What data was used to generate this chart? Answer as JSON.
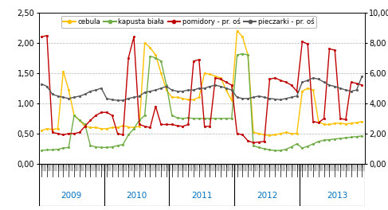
{
  "legend_labels": [
    "cebula",
    "kapusta biała",
    "pomidory - pr. oś",
    "pieczarki - pr. oś"
  ],
  "legend_colors": [
    "#FFC000",
    "#70AD47",
    "#C00000",
    "#595959"
  ],
  "left_ylim": [
    0.0,
    2.5
  ],
  "right_ylim": [
    0.0,
    10.0
  ],
  "left_yticks": [
    0.0,
    0.5,
    1.0,
    1.5,
    2.0,
    2.5
  ],
  "right_yticks": [
    0.0,
    2.0,
    4.0,
    6.0,
    8.0,
    10.0
  ],
  "grid_color": "#AAAAAA",
  "bg_color": "#FFFFFF",
  "year_labels": [
    "2009",
    "2010",
    "2011",
    "2012",
    "2013"
  ],
  "cebula": [
    0.55,
    0.58,
    0.57,
    0.58,
    1.53,
    1.22,
    0.8,
    0.72,
    0.62,
    0.6,
    0.6,
    0.58,
    0.58,
    0.6,
    0.6,
    0.63,
    0.61,
    0.6,
    0.62,
    2.0,
    1.92,
    1.8,
    1.5,
    1.22,
    1.1,
    1.1,
    1.08,
    1.06,
    1.06,
    1.1,
    1.5,
    1.48,
    1.45,
    1.42,
    1.22,
    1.05,
    2.2,
    2.1,
    1.8,
    0.52,
    0.5,
    0.48,
    0.47,
    0.48,
    0.5,
    0.52,
    0.5,
    0.5,
    1.2,
    1.25,
    1.22,
    0.7,
    0.65,
    0.65,
    0.67,
    0.67,
    0.66,
    0.67,
    0.68,
    0.7
  ],
  "kapusta": [
    0.22,
    0.23,
    0.23,
    0.24,
    0.26,
    0.27,
    0.8,
    0.72,
    0.65,
    0.3,
    0.28,
    0.27,
    0.27,
    0.28,
    0.3,
    0.32,
    0.48,
    0.58,
    0.72,
    0.8,
    1.78,
    1.75,
    1.7,
    1.3,
    0.8,
    0.76,
    0.75,
    0.76,
    0.75,
    0.75,
    0.75,
    0.75,
    0.75,
    0.75,
    0.75,
    0.75,
    1.8,
    1.82,
    1.8,
    0.3,
    0.27,
    0.25,
    0.23,
    0.22,
    0.22,
    0.24,
    0.28,
    0.33,
    0.26,
    0.29,
    0.33,
    0.37,
    0.39,
    0.4,
    0.41,
    0.42,
    0.43,
    0.44,
    0.45,
    0.46
  ],
  "pomidory": [
    2.1,
    2.12,
    0.52,
    0.5,
    0.48,
    0.5,
    0.5,
    0.52,
    0.62,
    0.72,
    0.8,
    0.85,
    0.85,
    0.8,
    0.5,
    0.48,
    1.75,
    2.1,
    0.65,
    0.62,
    0.6,
    0.95,
    0.65,
    0.65,
    0.65,
    0.63,
    0.62,
    0.65,
    1.7,
    1.72,
    0.62,
    0.62,
    1.42,
    1.4,
    1.35,
    1.3,
    0.5,
    0.48,
    0.38,
    0.35,
    0.36,
    0.37,
    1.4,
    1.42,
    1.38,
    1.35,
    1.3,
    1.2,
    2.02,
    1.98,
    0.7,
    0.68,
    0.75,
    1.9,
    1.88,
    0.75,
    0.73,
    1.35,
    1.33,
    1.3
  ],
  "pieczarki": [
    1.32,
    1.28,
    1.15,
    1.12,
    1.1,
    1.08,
    1.1,
    1.12,
    1.15,
    1.2,
    1.22,
    1.25,
    1.08,
    1.06,
    1.05,
    1.05,
    1.08,
    1.1,
    1.12,
    1.18,
    1.2,
    1.22,
    1.25,
    1.28,
    1.22,
    1.2,
    1.2,
    1.22,
    1.22,
    1.25,
    1.25,
    1.28,
    1.3,
    1.28,
    1.25,
    1.22,
    1.1,
    1.08,
    1.08,
    1.1,
    1.12,
    1.1,
    1.08,
    1.07,
    1.06,
    1.08,
    1.1,
    1.12,
    1.35,
    1.38,
    1.42,
    1.4,
    1.35,
    1.3,
    1.28,
    1.25,
    1.22,
    1.2,
    1.22,
    1.45
  ]
}
